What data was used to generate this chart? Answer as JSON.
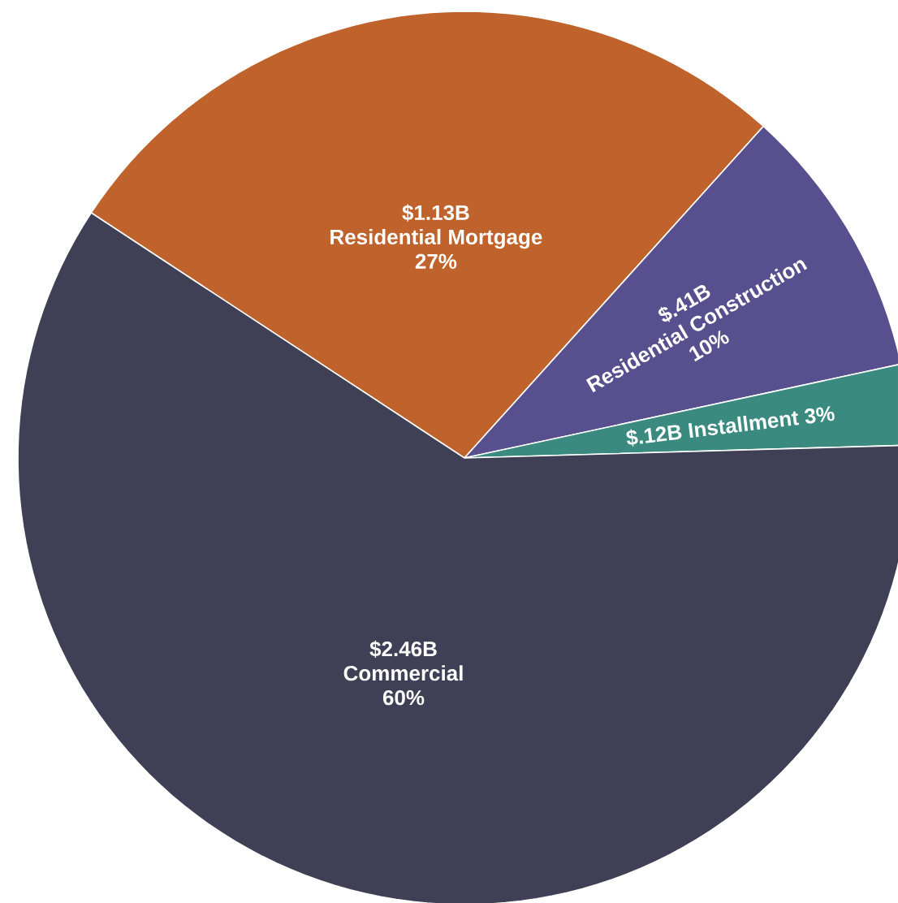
{
  "chart_data": {
    "type": "pie",
    "categories": [
      "Residential Mortgage",
      "Residential Construction",
      "Installment",
      "Commercial"
    ],
    "values": [
      1.13,
      0.41,
      0.12,
      2.46
    ],
    "value_labels": [
      "$1.13B",
      "$.41B",
      "$.12B",
      "$2.46B"
    ],
    "colors": [
      "#c0622b",
      "#58508e",
      "#3a8a80",
      "#3f3f55"
    ],
    "annotations": [
      {
        "text": "27%",
        "x": "Residential Mortgage"
      },
      {
        "text": "10%",
        "x": "Residential Construction"
      },
      {
        "text": "3%",
        "x": "Installment"
      },
      {
        "text": "60%",
        "x": "Commercial"
      }
    ]
  }
}
